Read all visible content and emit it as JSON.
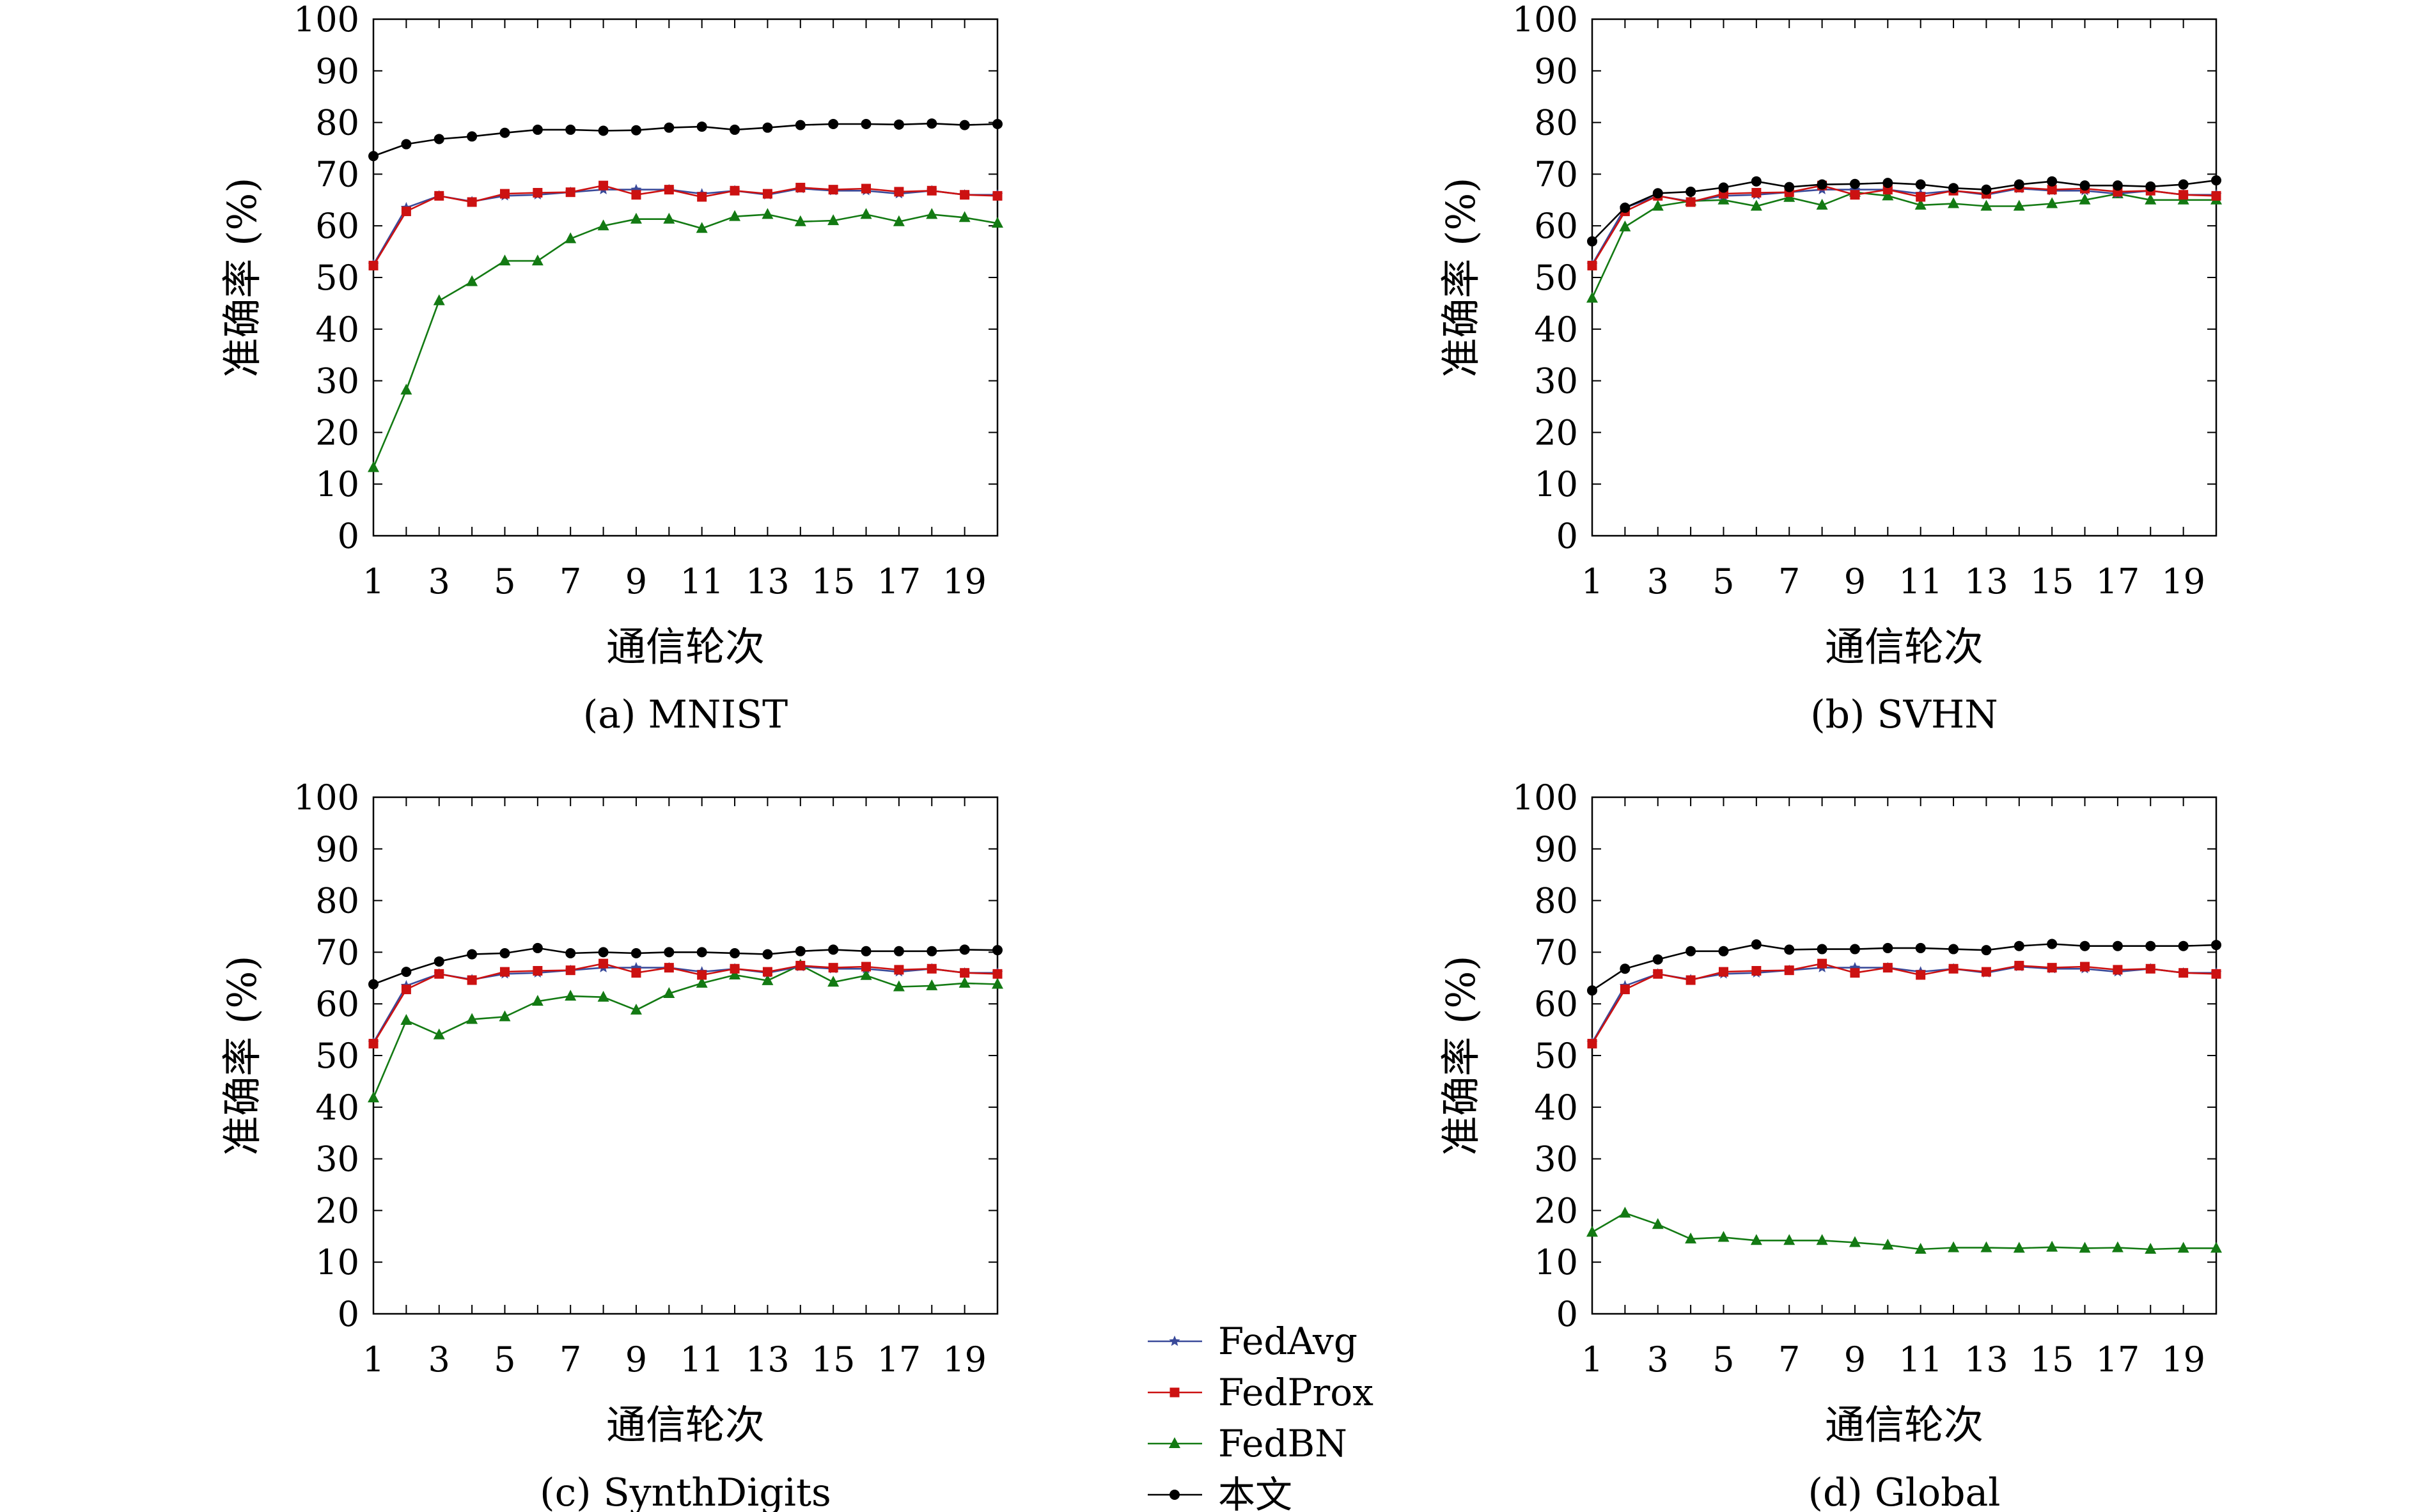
{
  "chart_data": [
    {
      "type": "line",
      "caption": "(a) MNIST",
      "xlabel": "通信轮次",
      "ylabel": "准确率 (%)",
      "ylim": [
        0,
        100
      ],
      "xlim": [
        1,
        20
      ],
      "yticks": [
        0,
        10,
        20,
        30,
        40,
        50,
        60,
        70,
        80,
        90,
        100
      ],
      "xticks": [
        1,
        3,
        5,
        7,
        9,
        11,
        13,
        15,
        17,
        19
      ],
      "x": [
        1,
        2,
        3,
        4,
        5,
        6,
        7,
        8,
        9,
        10,
        11,
        12,
        13,
        14,
        15,
        16,
        17,
        18,
        19,
        20
      ],
      "series": [
        {
          "name": "FedAvg",
          "values": [
            52.5,
            63.5,
            65.8,
            64.7,
            65.8,
            66.0,
            66.5,
            67.0,
            67.0,
            67.0,
            66.2,
            66.8,
            66.0,
            67.2,
            66.8,
            66.8,
            66.2,
            66.8,
            66.0,
            66.0
          ]
        },
        {
          "name": "FedProx",
          "values": [
            52.3,
            62.8,
            65.8,
            64.6,
            66.2,
            66.4,
            66.5,
            67.8,
            66.0,
            67.0,
            65.6,
            66.8,
            66.2,
            67.4,
            67.0,
            67.2,
            66.6,
            66.8,
            66.0,
            65.8
          ]
        },
        {
          "name": "FedBN",
          "values": [
            13.2,
            28.2,
            45.5,
            49.2,
            53.2,
            53.2,
            57.5,
            60.0,
            61.3,
            61.3,
            59.5,
            61.8,
            62.2,
            60.8,
            61.0,
            62.2,
            60.8,
            62.2,
            61.6,
            60.5
          ]
        },
        {
          "name": "本文",
          "values": [
            73.5,
            75.8,
            76.8,
            77.3,
            78.0,
            78.6,
            78.6,
            78.4,
            78.5,
            79.0,
            79.2,
            78.6,
            79.0,
            79.5,
            79.7,
            79.7,
            79.6,
            79.8,
            79.5,
            79.7
          ]
        }
      ]
    },
    {
      "type": "line",
      "caption": "(b) SVHN",
      "xlabel": "通信轮次",
      "ylabel": "准确率 (%)",
      "ylim": [
        0,
        100
      ],
      "xlim": [
        1,
        20
      ],
      "yticks": [
        0,
        10,
        20,
        30,
        40,
        50,
        60,
        70,
        80,
        90,
        100
      ],
      "xticks": [
        1,
        3,
        5,
        7,
        9,
        11,
        13,
        15,
        17,
        19
      ],
      "x": [
        1,
        2,
        3,
        4,
        5,
        6,
        7,
        8,
        9,
        10,
        11,
        12,
        13,
        14,
        15,
        16,
        17,
        18,
        19,
        20
      ],
      "series": [
        {
          "name": "FedAvg",
          "values": [
            52.5,
            63.5,
            65.8,
            64.7,
            65.8,
            66.0,
            66.5,
            67.0,
            67.0,
            67.0,
            66.2,
            66.8,
            66.0,
            67.2,
            66.8,
            66.8,
            66.2,
            66.8,
            66.0,
            66.0
          ]
        },
        {
          "name": "FedProx",
          "values": [
            52.3,
            62.8,
            65.8,
            64.6,
            66.2,
            66.4,
            66.5,
            67.8,
            66.0,
            67.0,
            65.6,
            66.8,
            66.2,
            67.4,
            67.0,
            67.2,
            66.6,
            66.8,
            66.0,
            65.8
          ]
        },
        {
          "name": "FedBN",
          "values": [
            46.0,
            59.8,
            63.8,
            64.8,
            65.0,
            63.8,
            65.5,
            64.0,
            66.5,
            65.8,
            64.0,
            64.3,
            63.8,
            63.8,
            64.3,
            65.0,
            66.2,
            65.0,
            65.0,
            65.0
          ]
        },
        {
          "name": "本文",
          "values": [
            57.0,
            63.5,
            66.3,
            66.6,
            67.4,
            68.6,
            67.5,
            68.0,
            68.1,
            68.3,
            68.0,
            67.3,
            67.0,
            68.0,
            68.6,
            67.8,
            67.8,
            67.6,
            68.0,
            68.8
          ]
        }
      ]
    },
    {
      "type": "line",
      "caption": "(c) SynthDigits",
      "xlabel": "通信轮次",
      "ylabel": "准确率 (%)",
      "ylim": [
        0,
        100
      ],
      "xlim": [
        1,
        20
      ],
      "yticks": [
        0,
        10,
        20,
        30,
        40,
        50,
        60,
        70,
        80,
        90,
        100
      ],
      "xticks": [
        1,
        3,
        5,
        7,
        9,
        11,
        13,
        15,
        17,
        19
      ],
      "x": [
        1,
        2,
        3,
        4,
        5,
        6,
        7,
        8,
        9,
        10,
        11,
        12,
        13,
        14,
        15,
        16,
        17,
        18,
        19,
        20
      ],
      "series": [
        {
          "name": "FedAvg",
          "values": [
            52.5,
            63.5,
            65.8,
            64.7,
            65.8,
            66.0,
            66.5,
            67.0,
            67.0,
            67.0,
            66.2,
            66.8,
            66.0,
            67.2,
            66.8,
            66.8,
            66.2,
            66.8,
            66.0,
            66.0
          ]
        },
        {
          "name": "FedProx",
          "values": [
            52.3,
            62.8,
            65.8,
            64.6,
            66.2,
            66.4,
            66.5,
            67.8,
            66.0,
            67.0,
            65.6,
            66.8,
            66.2,
            67.4,
            67.0,
            67.2,
            66.6,
            66.8,
            66.0,
            65.8
          ]
        },
        {
          "name": "FedBN",
          "values": [
            41.8,
            56.8,
            54.0,
            57.0,
            57.5,
            60.5,
            61.5,
            61.3,
            58.8,
            62.0,
            64.0,
            65.6,
            64.5,
            67.5,
            64.2,
            65.5,
            63.3,
            63.5,
            64.0,
            63.8
          ]
        },
        {
          "name": "本文",
          "values": [
            63.8,
            66.2,
            68.2,
            69.6,
            69.8,
            70.8,
            69.8,
            70.0,
            69.8,
            70.0,
            70.0,
            69.8,
            69.6,
            70.2,
            70.5,
            70.2,
            70.2,
            70.2,
            70.5,
            70.4
          ]
        }
      ]
    },
    {
      "type": "line",
      "caption": "(d) Global",
      "xlabel": "通信轮次",
      "ylabel": "准确率 (%)",
      "ylim": [
        0,
        100
      ],
      "xlim": [
        1,
        20
      ],
      "yticks": [
        0,
        10,
        20,
        30,
        40,
        50,
        60,
        70,
        80,
        90,
        100
      ],
      "xticks": [
        1,
        3,
        5,
        7,
        9,
        11,
        13,
        15,
        17,
        19
      ],
      "x": [
        1,
        2,
        3,
        4,
        5,
        6,
        7,
        8,
        9,
        10,
        11,
        12,
        13,
        14,
        15,
        16,
        17,
        18,
        19,
        20
      ],
      "series": [
        {
          "name": "FedAvg",
          "values": [
            52.5,
            63.5,
            65.8,
            64.7,
            65.8,
            66.0,
            66.5,
            67.0,
            67.0,
            67.0,
            66.2,
            66.8,
            66.0,
            67.2,
            66.8,
            66.8,
            66.2,
            66.8,
            66.0,
            66.0
          ]
        },
        {
          "name": "FedProx",
          "values": [
            52.3,
            62.8,
            65.8,
            64.6,
            66.2,
            66.4,
            66.5,
            67.8,
            66.0,
            67.0,
            65.6,
            66.8,
            66.2,
            67.4,
            67.0,
            67.2,
            66.6,
            66.8,
            66.0,
            65.8
          ]
        },
        {
          "name": "FedBN",
          "values": [
            15.8,
            19.5,
            17.3,
            14.5,
            14.8,
            14.2,
            14.2,
            14.2,
            13.8,
            13.3,
            12.5,
            12.8,
            12.8,
            12.7,
            12.9,
            12.7,
            12.8,
            12.5,
            12.7,
            12.7
          ]
        },
        {
          "name": "本文",
          "values": [
            62.6,
            66.8,
            68.6,
            70.2,
            70.2,
            71.5,
            70.5,
            70.6,
            70.6,
            70.8,
            70.8,
            70.6,
            70.4,
            71.2,
            71.6,
            71.2,
            71.2,
            71.2,
            71.2,
            71.4
          ]
        }
      ]
    }
  ],
  "legend": {
    "placement": "bottom-center",
    "items": [
      {
        "label": "FedAvg",
        "color": "#3a4a9a",
        "marker": "star"
      },
      {
        "label": "FedProx",
        "color": "#cc1111",
        "marker": "square"
      },
      {
        "label": "FedBN",
        "color": "#137a13",
        "marker": "triangle"
      },
      {
        "label": "本文",
        "color": "#000000",
        "marker": "circle"
      }
    ]
  }
}
